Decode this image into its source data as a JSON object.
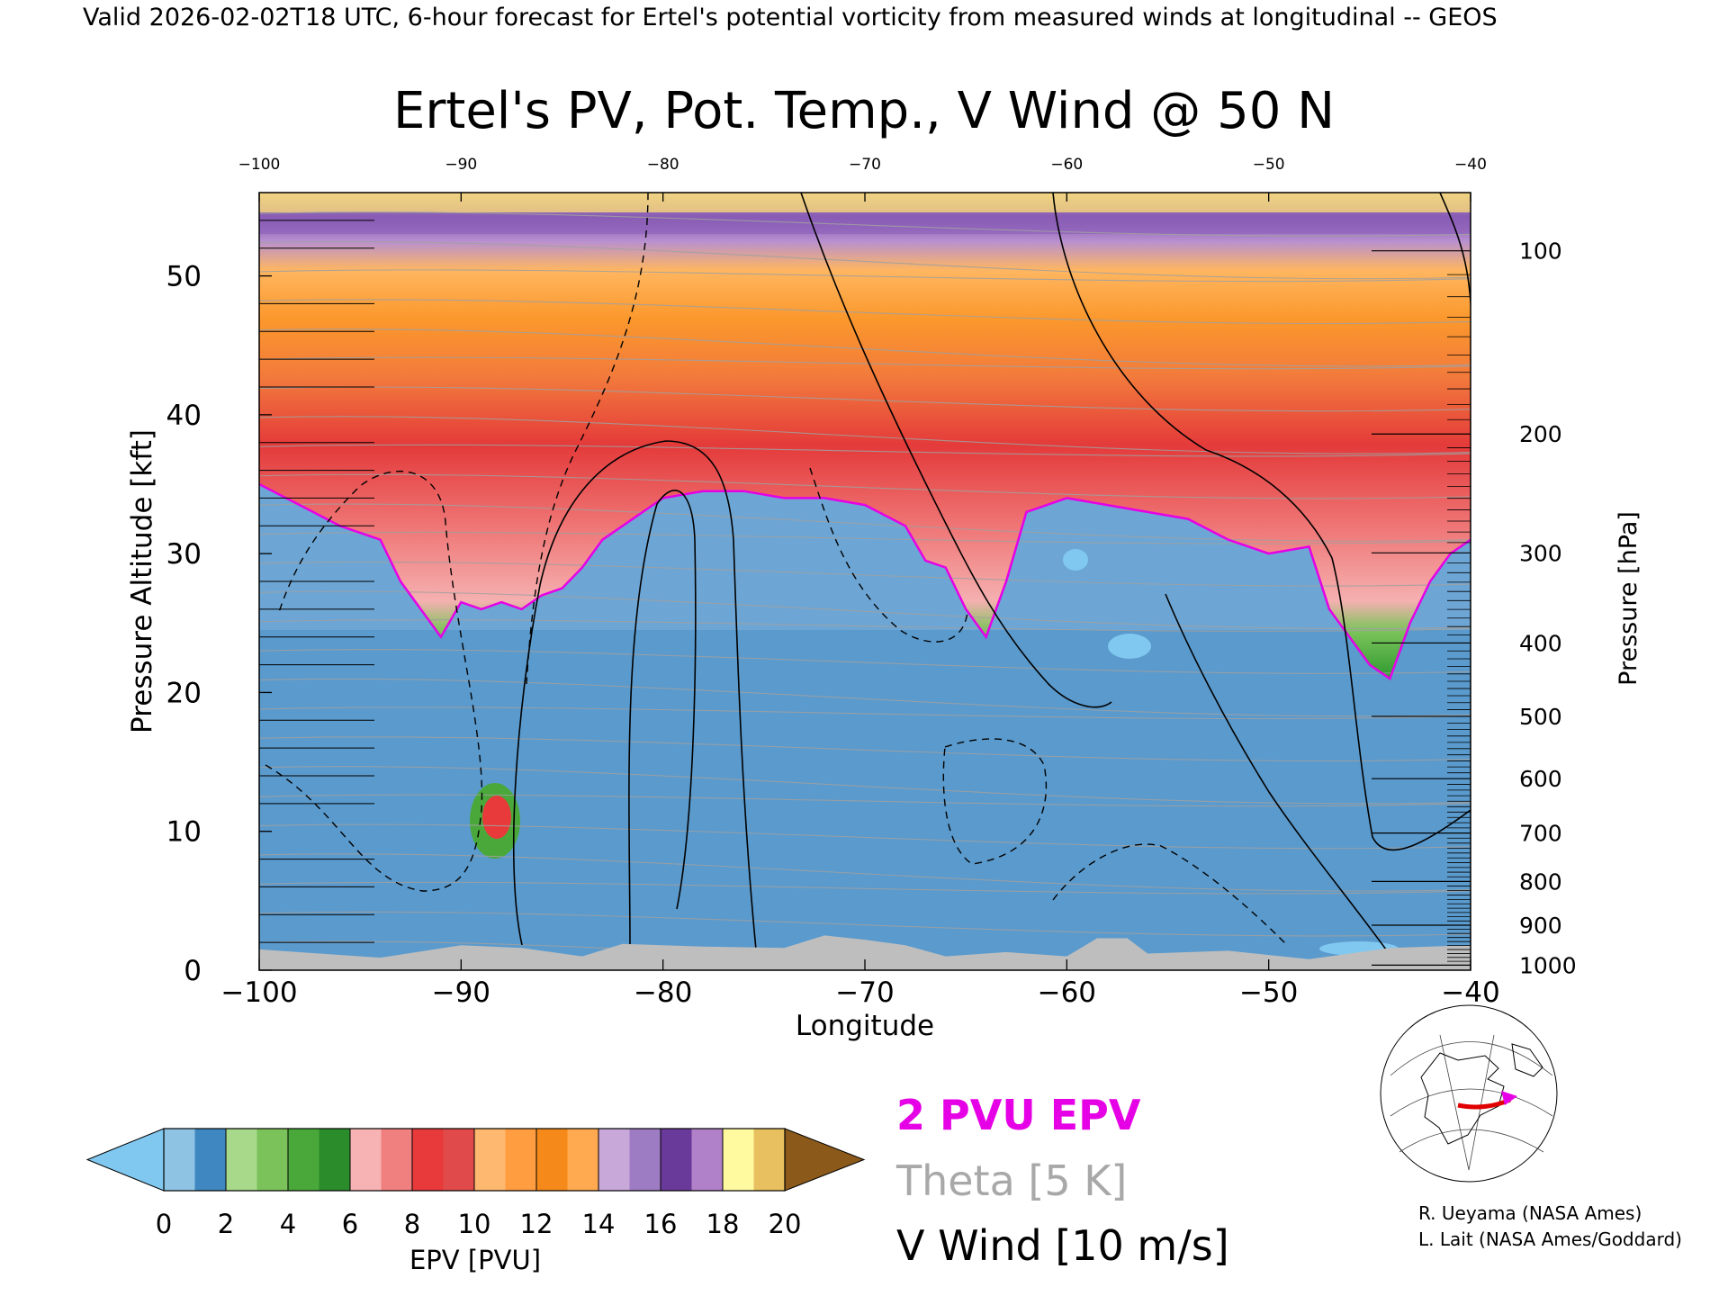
{
  "header": {
    "caption": "Valid 2026-02-02T18 UTC, 6-hour forecast for Ertel's potential vorticity from measured winds at longitudinal -- GEOS"
  },
  "colors": {
    "pvu2_contour": "#e600e6",
    "theta": "#a0a0a0",
    "vwind": "#000000",
    "terrain": "#bebebe",
    "track": "#e00000",
    "track_marker": "#e600e6"
  },
  "chart_data": {
    "type": "heatmap",
    "title": "Ertel's PV, Pot. Temp., V Wind @ 50 N",
    "xlabel": "Longitude",
    "ylabel": "Pressure Altitude [kft]",
    "y2label": "Pressure [hPa]",
    "xlim": [
      -100,
      -40
    ],
    "ylim": [
      0,
      56
    ],
    "x_ticks": [
      -100,
      -90,
      -80,
      -70,
      -60,
      -50,
      -40
    ],
    "x_tick_labels": [
      "−100",
      "−90",
      "−80",
      "−70",
      "−60",
      "−50",
      "−40"
    ],
    "top_tick_labels": [
      "−100",
      "−90",
      "−80",
      "−70",
      "−60",
      "−50",
      "−40"
    ],
    "y_ticks": [
      0,
      10,
      20,
      30,
      40,
      50
    ],
    "y_tick_labels": [
      "0",
      "10",
      "20",
      "30",
      "40",
      "50"
    ],
    "pressure_ticks": [
      {
        "hpa": 100,
        "label": "100"
      },
      {
        "hpa": 200,
        "label": "200"
      },
      {
        "hpa": 300,
        "label": "300"
      },
      {
        "hpa": 400,
        "label": "400"
      },
      {
        "hpa": 500,
        "label": "500"
      },
      {
        "hpa": 600,
        "label": "600"
      },
      {
        "hpa": 700,
        "label": "700"
      },
      {
        "hpa": 800,
        "label": "800"
      },
      {
        "hpa": 900,
        "label": "900"
      },
      {
        "hpa": 1000,
        "label": "1000"
      }
    ],
    "tropopause_kft": [
      [
        -100,
        35
      ],
      [
        -98,
        33.5
      ],
      [
        -96,
        32
      ],
      [
        -94,
        31
      ],
      [
        -93,
        28
      ],
      [
        -92,
        26
      ],
      [
        -91,
        24
      ],
      [
        -90,
        26.5
      ],
      [
        -89,
        26
      ],
      [
        -88,
        26.5
      ],
      [
        -87,
        26
      ],
      [
        -86,
        27
      ],
      [
        -85,
        27.5
      ],
      [
        -84,
        29
      ],
      [
        -83,
        31
      ],
      [
        -82,
        32
      ],
      [
        -81,
        33
      ],
      [
        -80,
        34
      ],
      [
        -78,
        34.5
      ],
      [
        -76,
        34.5
      ],
      [
        -74,
        34
      ],
      [
        -72,
        34
      ],
      [
        -70,
        33.5
      ],
      [
        -68,
        32
      ],
      [
        -67,
        29.5
      ],
      [
        -66,
        29
      ],
      [
        -65,
        26
      ],
      [
        -64,
        24
      ],
      [
        -63,
        28
      ],
      [
        -62,
        33
      ],
      [
        -60,
        34
      ],
      [
        -58,
        33.5
      ],
      [
        -56,
        33
      ],
      [
        -54,
        32.5
      ],
      [
        -52,
        31
      ],
      [
        -50,
        30
      ],
      [
        -48,
        30.5
      ],
      [
        -47,
        26
      ],
      [
        -46,
        24
      ],
      [
        -45,
        22
      ],
      [
        -44,
        21
      ],
      [
        -43,
        25
      ],
      [
        -42,
        28
      ],
      [
        -41,
        30
      ],
      [
        -40,
        31
      ]
    ],
    "pv_color_levels": [
      {
        "range": [
          0,
          1
        ],
        "color": "#8fc3e4"
      },
      {
        "range": [
          1,
          2
        ],
        "color": "#3f87c0"
      },
      {
        "range": [
          2,
          3
        ],
        "color": "#a8d88a"
      },
      {
        "range": [
          3,
          4
        ],
        "color": "#7cc25b"
      },
      {
        "range": [
          4,
          5
        ],
        "color": "#4aa83a"
      },
      {
        "range": [
          5,
          6
        ],
        "color": "#2b8c2b"
      },
      {
        "range": [
          6,
          7
        ],
        "color": "#f7b3b3"
      },
      {
        "range": [
          7,
          8
        ],
        "color": "#f08080"
      },
      {
        "range": [
          8,
          9
        ],
        "color": "#e83a3a"
      },
      {
        "range": [
          9,
          10
        ],
        "color": "#e04a4a"
      },
      {
        "range": [
          10,
          11
        ],
        "color": "#ffb870"
      },
      {
        "range": [
          11,
          12
        ],
        "color": "#ff9d40"
      },
      {
        "range": [
          12,
          13
        ],
        "color": "#f58a1a"
      },
      {
        "range": [
          13,
          14
        ],
        "color": "#ffaa50"
      },
      {
        "range": [
          14,
          15
        ],
        "color": "#c8a8d8"
      },
      {
        "range": [
          15,
          16
        ],
        "color": "#9e7cc4"
      },
      {
        "range": [
          16,
          17
        ],
        "color": "#6a3a9a"
      },
      {
        "range": [
          17,
          18
        ],
        "color": "#b080c8"
      },
      {
        "range": [
          18,
          19
        ],
        "color": "#fffaa0"
      },
      {
        "range": [
          19,
          20
        ],
        "color": "#e8c060"
      }
    ],
    "colorbar": {
      "label": "EPV [PVU]",
      "ticks": [
        "0",
        "2",
        "4",
        "6",
        "8",
        "10",
        "12",
        "14",
        "16",
        "18",
        "20"
      ],
      "under_color": "#80c8f0",
      "over_color": "#8b5a1a"
    },
    "legend": [
      {
        "text": "2 PVU EPV",
        "color": "#e600e6"
      },
      {
        "text": "Theta [5 K]",
        "color": "#a8a8a8"
      },
      {
        "text": "V Wind [10 m/s]",
        "color": "#000000"
      }
    ],
    "credits": [
      "R. Ueyama (NASA Ames)",
      "L. Lait (NASA Ames/Goddard)"
    ]
  }
}
